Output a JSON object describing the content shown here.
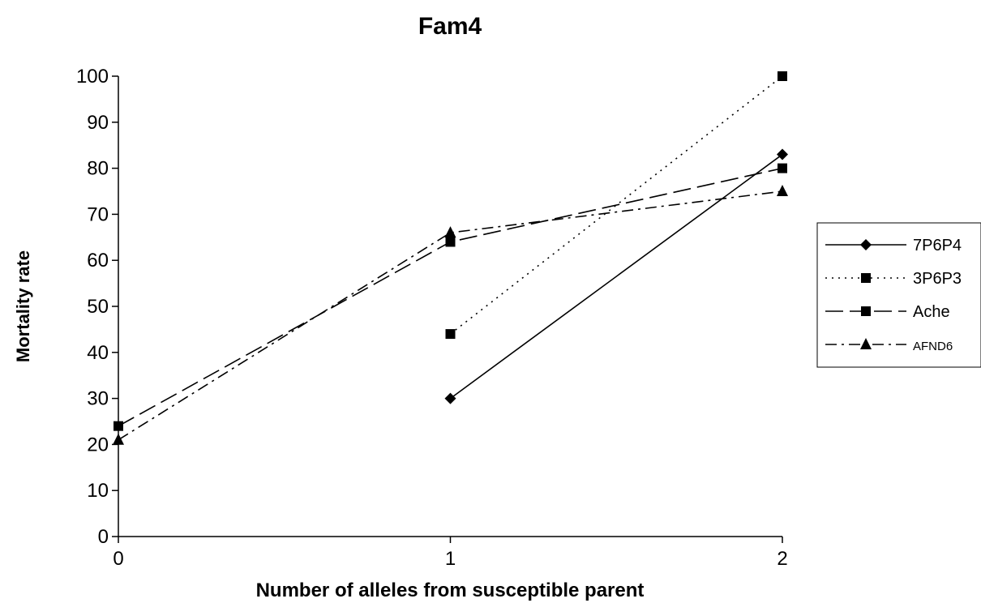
{
  "chart_data": {
    "type": "line",
    "title": "Fam4",
    "xlabel": "Number of alleles from susceptible parent",
    "ylabel": "Mortality rate",
    "categories": [
      "0",
      "1",
      "2"
    ],
    "ylim": [
      0,
      100
    ],
    "yticks": [
      "0",
      "10",
      "20",
      "30",
      "40",
      "50",
      "60",
      "70",
      "80",
      "90",
      "100"
    ],
    "grid": false,
    "legend_position": "right",
    "series": [
      {
        "name": "7P6P4",
        "values": [
          null,
          30,
          83
        ],
        "marker": "diamond",
        "dash": "solid"
      },
      {
        "name": "3P6P3",
        "values": [
          null,
          44,
          100
        ],
        "marker": "square",
        "dash": "dotted"
      },
      {
        "name": "Ache",
        "values": [
          24,
          64,
          80
        ],
        "marker": "square",
        "dash": "long-dash"
      },
      {
        "name": "AFND6",
        "values": [
          21,
          66,
          75
        ],
        "marker": "triangle",
        "dash": "dash-dot"
      }
    ]
  }
}
